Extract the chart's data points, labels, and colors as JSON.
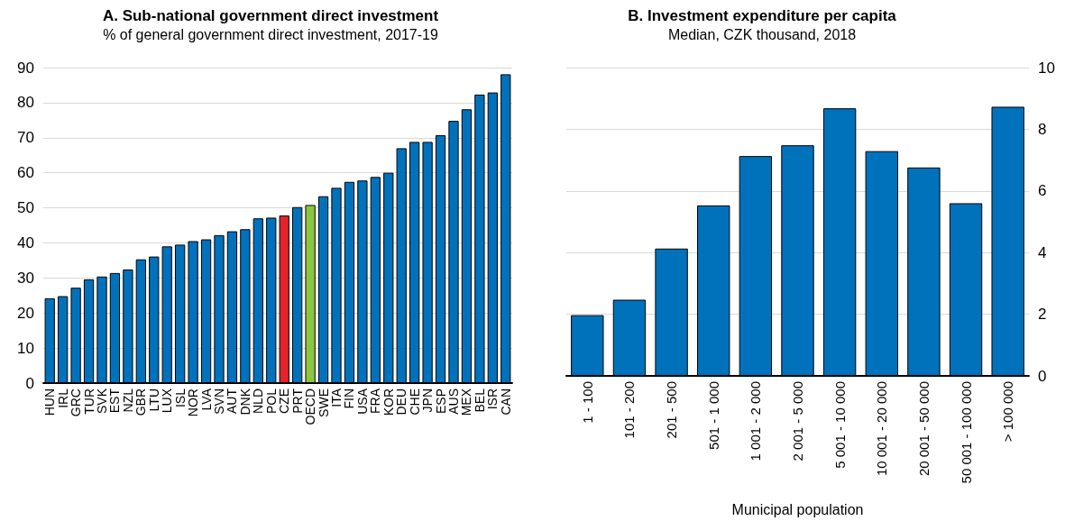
{
  "chart_data": [
    {
      "type": "bar",
      "title": "A. Sub-national government direct investment",
      "subtitle": "% of general government direct investment, 2017-19",
      "categories": [
        "HUN",
        "IRL",
        "GRC",
        "TUR",
        "SVK",
        "EST",
        "NZL",
        "GBR",
        "LTU",
        "LUX",
        "ISL",
        "NOR",
        "LVA",
        "SVN",
        "AUT",
        "DNK",
        "NLD",
        "POL",
        "CZE",
        "PRT",
        "OECD",
        "SWE",
        "ITA",
        "FIN",
        "USA",
        "FRA",
        "KOR",
        "DEU",
        "CHE",
        "JPN",
        "ESP",
        "AUS",
        "MEX",
        "BEL",
        "ISR",
        "CAN"
      ],
      "values": [
        24.2,
        24.8,
        27.2,
        29.6,
        30.4,
        31.4,
        32.4,
        35.3,
        36.1,
        39,
        39.5,
        40.5,
        41,
        42.2,
        43.3,
        43.9,
        47,
        47.2,
        47.8,
        50.2,
        50.8,
        53.3,
        55.7,
        57.4,
        57.8,
        58.8,
        60,
        67,
        68.8,
        68.8,
        70.7,
        74.8,
        78.1,
        82.3,
        82.9,
        88.1
      ],
      "colors": [
        "#0072bc",
        "#0072bc",
        "#0072bc",
        "#0072bc",
        "#0072bc",
        "#0072bc",
        "#0072bc",
        "#0072bc",
        "#0072bc",
        "#0072bc",
        "#0072bc",
        "#0072bc",
        "#0072bc",
        "#0072bc",
        "#0072bc",
        "#0072bc",
        "#0072bc",
        "#0072bc",
        "#e3242b",
        "#0072bc",
        "#8cc63e",
        "#0072bc",
        "#0072bc",
        "#0072bc",
        "#0072bc",
        "#0072bc",
        "#0072bc",
        "#0072bc",
        "#0072bc",
        "#0072bc",
        "#0072bc",
        "#0072bc",
        "#0072bc",
        "#0072bc",
        "#0072bc",
        "#0072bc"
      ],
      "ylim": [
        0,
        90
      ],
      "yticks": [
        0,
        10,
        20,
        30,
        40,
        50,
        60,
        70,
        80,
        90
      ],
      "grid": "y"
    },
    {
      "type": "bar",
      "title": "B. Investment expenditure per capita",
      "subtitle": "Median, CZK thousand, 2018",
      "xlabel": "Municipal population",
      "categories": [
        "1 - 100",
        "101 - 200",
        "201 - 500",
        "501 - 1 000",
        "1 001 - 2 000",
        "2 001 - 5 000",
        "5 001 - 10 000",
        "10 001 - 20 000",
        "20 001 - 50 000",
        "50 001 - 100 000",
        "> 100 000"
      ],
      "series": [
        {
          "color": "#0072bc",
          "axis": "y2",
          "values": [
            1.97,
            2.47,
            4.13,
            5.53,
            7.13,
            7.48,
            8.68,
            7.29,
            6.76,
            5.6,
            8.73
          ]
        }
      ],
      "y2lim": [
        0,
        10
      ],
      "y2ticks": [
        0,
        2,
        4,
        6,
        8,
        10
      ],
      "grid": "y"
    }
  ]
}
